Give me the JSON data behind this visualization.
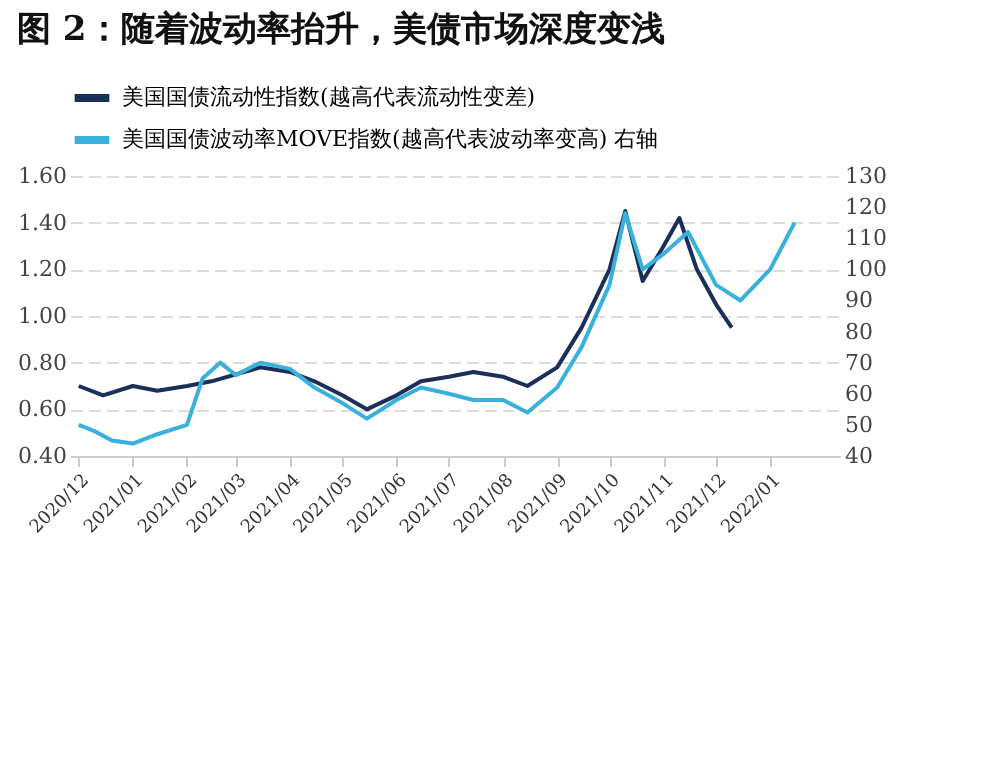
{
  "chart_data": {
    "type": "line",
    "title": "图 2：随着波动率抬升，美债市场深度变浅",
    "xlim": [
      "2020-11-26",
      "2022-02-10"
    ],
    "xticks": [
      {
        "value": "2020-12-01",
        "label": "2020/12"
      },
      {
        "value": "2021-01-01",
        "label": "2021/01"
      },
      {
        "value": "2021-02-01",
        "label": "2021/02"
      },
      {
        "value": "2021-03-01",
        "label": "2021/03"
      },
      {
        "value": "2021-04-01",
        "label": "2021/04"
      },
      {
        "value": "2021-05-01",
        "label": "2021/05"
      },
      {
        "value": "2021-06-01",
        "label": "2021/06"
      },
      {
        "value": "2021-07-01",
        "label": "2021/07"
      },
      {
        "value": "2021-08-01",
        "label": "2021/08"
      },
      {
        "value": "2021-09-01",
        "label": "2021/09"
      },
      {
        "value": "2021-10-01",
        "label": "2021/10"
      },
      {
        "value": "2021-11-01",
        "label": "2021/11"
      },
      {
        "value": "2021-12-01",
        "label": "2021/12"
      },
      {
        "value": "2022-01-01",
        "label": "2022/01"
      }
    ],
    "ylim": [
      0.4,
      1.6
    ],
    "yticks": [
      {
        "value": 0.4,
        "label": "0.40"
      },
      {
        "value": 0.6,
        "label": "0.60"
      },
      {
        "value": 0.8,
        "label": "0.80"
      },
      {
        "value": 1.0,
        "label": "1.00"
      },
      {
        "value": 1.2,
        "label": "1.20"
      },
      {
        "value": 1.4,
        "label": "1.40"
      },
      {
        "value": 1.6,
        "label": "1.60"
      }
    ],
    "y2lim": [
      40,
      130
    ],
    "y2ticks": [
      40,
      50,
      60,
      70,
      80,
      90,
      100,
      110,
      120,
      130
    ],
    "grid": "y",
    "legend": "top",
    "series": [
      {
        "name": "美国国债流动性指数(越高代表流动性变差)",
        "color": "#1a2f5a",
        "x": [
          "2020-12-01",
          "2020-12-15",
          "2021-01-01",
          "2021-01-15",
          "2021-02-01",
          "2021-02-15",
          "2021-03-01",
          "2021-03-15",
          "2021-04-01",
          "2021-04-15",
          "2021-05-01",
          "2021-05-15",
          "2021-06-01",
          "2021-06-15",
          "2021-07-01",
          "2021-07-15",
          "2021-08-01",
          "2021-08-15",
          "2021-09-01",
          "2021-09-15",
          "2021-10-01",
          "2021-10-10",
          "2021-10-20",
          "2021-11-01",
          "2021-11-10",
          "2021-11-20",
          "2021-12-01",
          "2021-12-10"
        ],
        "values": [
          0.7,
          0.66,
          0.7,
          0.68,
          0.7,
          0.72,
          0.75,
          0.78,
          0.76,
          0.72,
          0.66,
          0.6,
          0.66,
          0.72,
          0.74,
          0.76,
          0.74,
          0.7,
          0.78,
          0.95,
          1.2,
          1.45,
          1.15,
          1.3,
          1.42,
          1.2,
          1.05,
          0.95
        ]
      },
      {
        "name": "美国国债波动率MOVE指数(越高代表波动率变高) 右轴",
        "color": "#3ab0dc",
        "axis": "y2",
        "x": [
          "2020-12-01",
          "2020-12-10",
          "2020-12-20",
          "2021-01-01",
          "2021-01-15",
          "2021-02-01",
          "2021-02-10",
          "2021-02-20",
          "2021-03-01",
          "2021-03-15",
          "2021-04-01",
          "2021-04-15",
          "2021-05-01",
          "2021-05-15",
          "2021-06-01",
          "2021-06-15",
          "2021-07-01",
          "2021-07-15",
          "2021-08-01",
          "2021-08-15",
          "2021-09-01",
          "2021-09-15",
          "2021-10-01",
          "2021-10-10",
          "2021-10-20",
          "2021-11-01",
          "2021-11-15",
          "2021-12-01",
          "2021-12-15",
          "2022-01-01",
          "2022-01-15"
        ],
        "values": [
          50,
          48,
          45,
          44,
          47,
          50,
          65,
          70,
          66,
          70,
          68,
          62,
          57,
          52,
          58,
          62,
          60,
          58,
          58,
          54,
          62,
          75,
          95,
          118,
          100,
          105,
          112,
          95,
          90,
          100,
          115
        ]
      }
    ]
  }
}
